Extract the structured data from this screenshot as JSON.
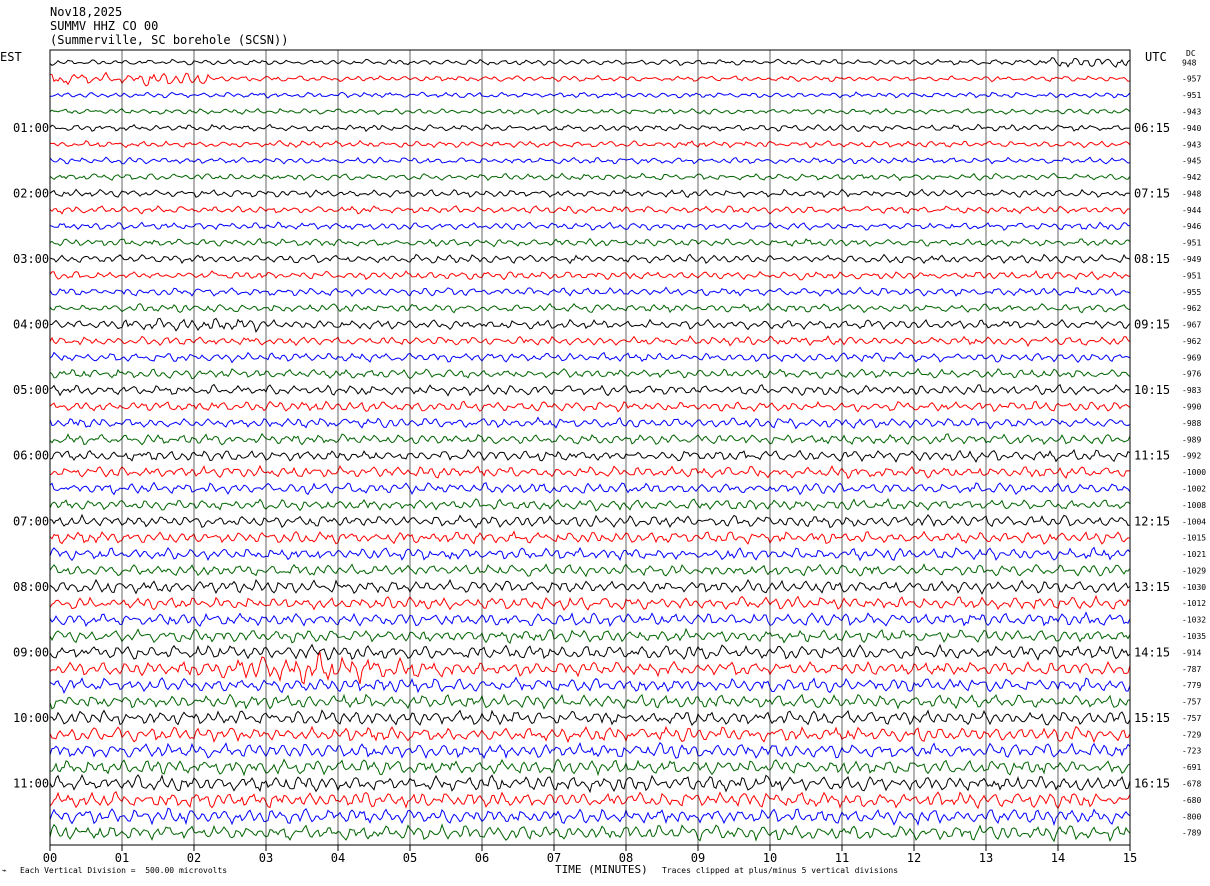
{
  "header": {
    "date": "Nov18,2025",
    "station": "SUMMV HHZ CO 00",
    "location": "(Summerville, SC borehole (SCSN))"
  },
  "left_tz": "EST",
  "right_tz": "UTC",
  "dc_label": "DC",
  "footer": {
    "scale_note": "Each Vertical Division =  500.00 microvolts",
    "clip_note": "Traces clipped at plus/minus 5 vertical divisions",
    "xlabel": "TIME (MINUTES)"
  },
  "colors": {
    "cycle": [
      "#000000",
      "#ff0000",
      "#0000ff",
      "#006400"
    ]
  },
  "chart_data": {
    "type": "line",
    "x_ticks": [
      "00",
      "01",
      "02",
      "03",
      "04",
      "05",
      "06",
      "07",
      "08",
      "09",
      "10",
      "11",
      "12",
      "13",
      "14",
      "15"
    ],
    "xlim": [
      0,
      15
    ],
    "left_hour_labels": [
      "01:00",
      "02:00",
      "03:00",
      "04:00",
      "05:00",
      "06:00",
      "07:00",
      "08:00",
      "09:00",
      "10:00",
      "11:00"
    ],
    "right_hour_labels": [
      "06:15",
      "07:15",
      "08:15",
      "09:15",
      "10:15",
      "11:15",
      "12:15",
      "13:15",
      "14:15",
      "15:15",
      "16:15"
    ],
    "dc_offsets": [
      "948",
      "-957",
      "-951",
      "-943",
      "-940",
      "-943",
      "-945",
      "-942",
      "-948",
      "-944",
      "-946",
      "-951",
      "-949",
      "-951",
      "-955",
      "-962",
      "-967",
      "-962",
      "-969",
      "-976",
      "-983",
      "-990",
      "-988",
      "-989",
      "-992",
      "-1000",
      "-1002",
      "-1008",
      "-1004",
      "-1015",
      "-1021",
      "-1029",
      "-1030",
      "-1012",
      "-1032",
      "-1035",
      "-914",
      "-787",
      "-779",
      "-757",
      "-757",
      "-729",
      "-723",
      "-691",
      "-678",
      "-680",
      "-800",
      "-789"
    ],
    "trace_count": 48,
    "traces_per_hour": 4
  }
}
